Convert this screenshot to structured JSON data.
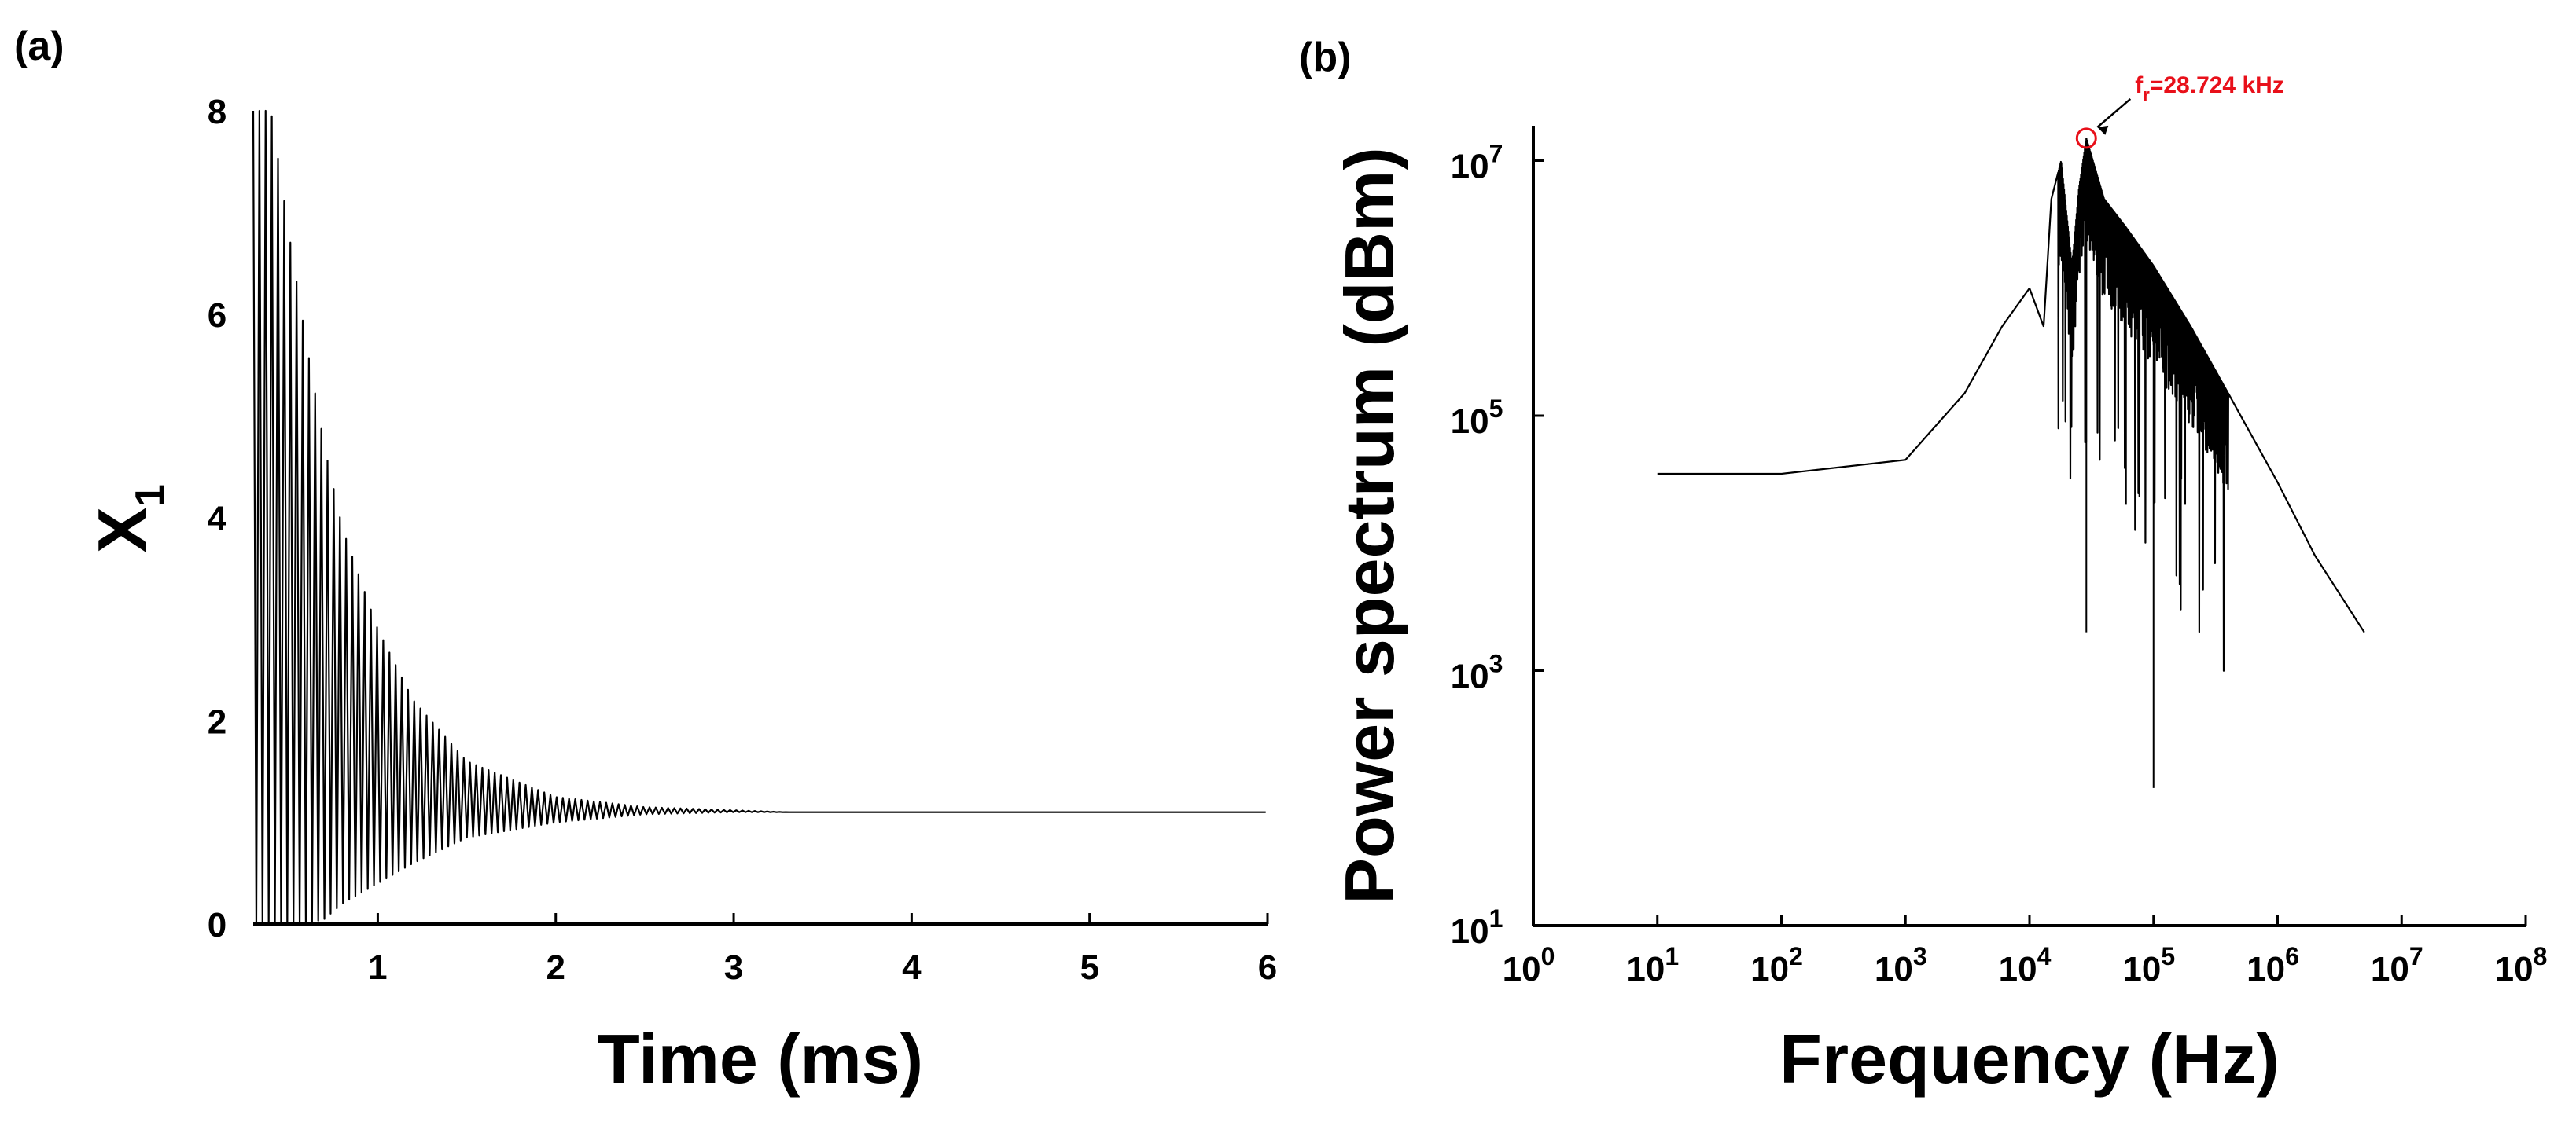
{
  "figure": {
    "panels": [
      {
        "label": "(a)",
        "chart_data": {
          "type": "line",
          "title": "",
          "xlabel": "Time (ms)",
          "ylabel": "X",
          "ylabel_subscript": "1",
          "xlim": [
            0.3,
            6
          ],
          "ylim": [
            0,
            8
          ],
          "xticks": [
            1,
            2,
            3,
            4,
            5,
            6
          ],
          "xtick_labels": [
            "1",
            "2",
            "3",
            "4",
            "5",
            "6"
          ],
          "yticks": [
            0,
            2,
            4,
            6,
            8
          ],
          "ytick_labels": [
            "0",
            "2",
            "4",
            "6",
            "8"
          ],
          "grid": false,
          "series": [
            {
              "description_points": {
                "t_ms": [
                  0.3,
                  0.4,
                  0.5,
                  0.6,
                  0.7,
                  0.8,
                  1.0,
                  1.2,
                  1.5,
                  2.0,
                  2.5,
                  3.0,
                  3.3,
                  4.0,
                  5.0,
                  6.0
                ],
                "upper_envelope": [
                  8.0,
                  8.0,
                  6.8,
                  5.7,
                  4.7,
                  3.9,
                  2.9,
                  2.2,
                  1.6,
                  1.25,
                  1.15,
                  1.12,
                  1.1,
                  1.1,
                  1.1,
                  1.1
                ],
                "lower_envelope": [
                  0.0,
                  0.0,
                  0.0,
                  0.0,
                  0.05,
                  0.2,
                  0.4,
                  0.6,
                  0.85,
                  1.0,
                  1.08,
                  1.1,
                  1.1,
                  1.1,
                  1.1,
                  1.1
                ]
              },
              "steady_value": 1.1,
              "oscillation_period_ms": 0.0348
            }
          ]
        }
      },
      {
        "label": "(b)",
        "chart_data": {
          "type": "line",
          "title": "",
          "xlabel": "Frequency (Hz)",
          "ylabel": "Power spectrum (dBm)",
          "x_scale": "log",
          "y_scale": "log",
          "xlim": [
            1,
            100000000
          ],
          "ylim": [
            10,
            1000000000
          ],
          "xtick_exponents": [
            "0",
            "1",
            "2",
            "3",
            "4",
            "5",
            "6",
            "7",
            "8"
          ],
          "ytick_exponents": [
            "1",
            "3",
            "5",
            "7"
          ],
          "tick_base": "10",
          "grid": false,
          "series": [
            {
              "x": [
                10,
                100,
                1000,
                3000,
                6000,
                10000,
                13000,
                15000,
                18000,
                22000,
                25000,
                28724,
                40000,
                60000,
                100000,
                200000,
                400000,
                1000000,
                2000000,
                5000000
              ],
              "y": [
                35000,
                35000,
                45000,
                150000,
                500000,
                1000000,
                500000,
                5000000,
                10000000,
                1500000,
                6000000,
                15000000,
                5000000,
                3000000,
                1500000,
                500000,
                150000,
                30000,
                8000,
                2000
              ]
            }
          ],
          "annotation": {
            "text_main": "f",
            "text_sub": "r",
            "text_rest": "=28.724 kHz",
            "x": 28724,
            "y": 15000000,
            "color": "#e8101a"
          }
        }
      }
    ]
  }
}
